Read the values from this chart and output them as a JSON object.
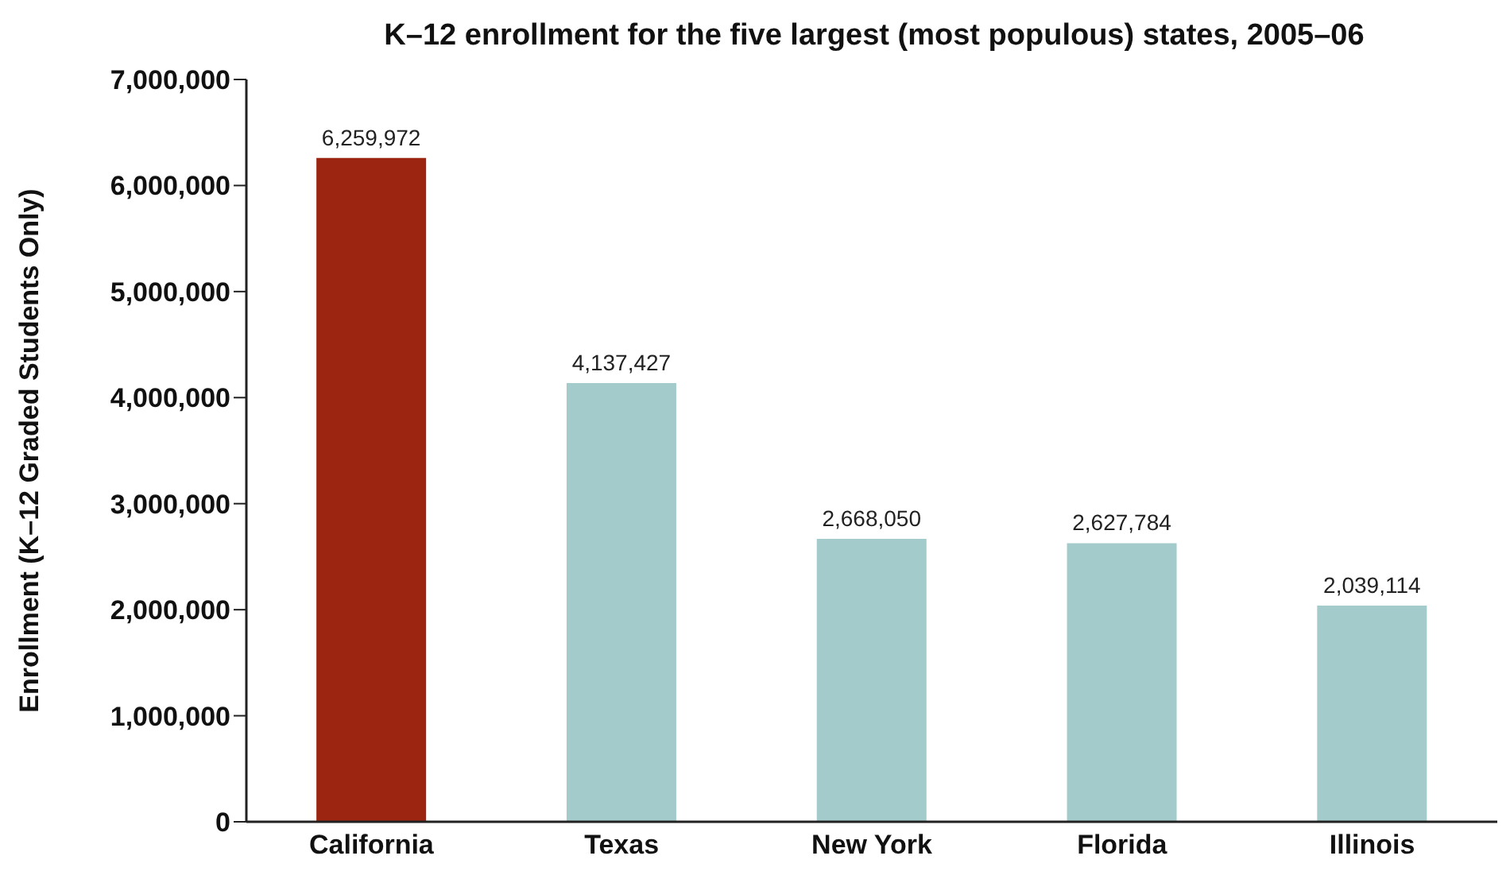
{
  "chart_data": {
    "type": "bar",
    "title": "K–12 enrollment for the five largest (most populous) states, 2005–06",
    "ylabel": "Enrollment (K–12 Graded Students Only)",
    "categories": [
      "California",
      "Texas",
      "New York",
      "Florida",
      "Illinois"
    ],
    "values": [
      6259972,
      4137427,
      2668050,
      2627784,
      2039114
    ],
    "colors": [
      "#9b2510",
      "#a3cbcb",
      "#a3cbcb",
      "#a3cbcb",
      "#a3cbcb"
    ],
    "value_labels": [
      "6,259,972",
      "4,137,427",
      "2,668,050",
      "2,627,784",
      "2,039,114"
    ],
    "ylim": [
      0,
      7000000
    ],
    "yticks": [
      0,
      {
        "value": 1000000,
        "label": "1,000,000"
      },
      {
        "value": 2000000,
        "label": "2,000,000"
      },
      {
        "value": 3000000,
        "label": "3,000,000"
      },
      {
        "value": 4000000,
        "label": "4,000,000"
      },
      {
        "value": 5000000,
        "label": "5,000,000"
      },
      {
        "value": 6000000,
        "label": "6,000,000"
      },
      {
        "value": 7000000,
        "label": "7,000,000"
      }
    ],
    "grid": false,
    "legend": false
  }
}
